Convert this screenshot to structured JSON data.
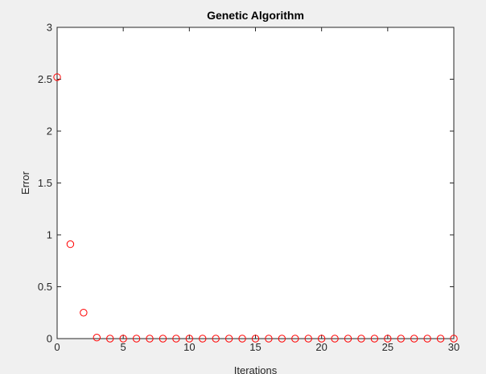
{
  "chart_data": {
    "type": "scatter",
    "title": "Genetic Algorithm",
    "xlabel": "Iterations",
    "ylabel": "Error",
    "xlim": [
      0,
      30
    ],
    "ylim": [
      0,
      3
    ],
    "xticks": [
      0,
      5,
      10,
      15,
      20,
      25,
      30
    ],
    "yticks": [
      0,
      0.5,
      1,
      1.5,
      2,
      2.5,
      3
    ],
    "xtick_labels": [
      "0",
      "5",
      "10",
      "15",
      "20",
      "25",
      "30"
    ],
    "ytick_labels": [
      "0",
      "0.5",
      "1",
      "1.5",
      "2",
      "2.5",
      "3"
    ],
    "grid": false,
    "marker": "circle",
    "marker_color": "#ff0000",
    "series": [
      {
        "x": [
          0,
          1,
          2,
          3,
          4,
          5,
          6,
          7,
          8,
          9,
          10,
          11,
          12,
          13,
          14,
          15,
          16,
          17,
          18,
          19,
          20,
          21,
          22,
          23,
          24,
          25,
          26,
          27,
          28,
          29,
          30
        ],
        "y": [
          2.52,
          0.91,
          0.25,
          0.01,
          0.0,
          0.0,
          0.0,
          0.0,
          0.0,
          0.0,
          0.0,
          0.0,
          0.0,
          0.0,
          0.0,
          0.0,
          0.0,
          0.0,
          0.0,
          0.0,
          0.0,
          0.0,
          0.0,
          0.0,
          0.0,
          0.0,
          0.0,
          0.0,
          0.0,
          0.0,
          0.0
        ]
      }
    ]
  },
  "colors": {
    "background": "#f0f0f0",
    "axes_background": "#ffffff",
    "axis_line": "#262626"
  }
}
